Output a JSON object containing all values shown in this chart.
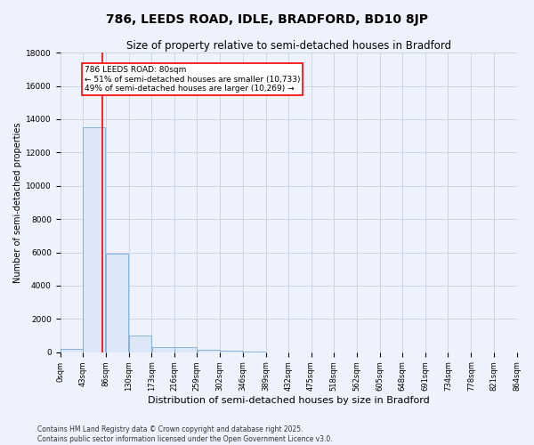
{
  "title1": "786, LEEDS ROAD, IDLE, BRADFORD, BD10 8JP",
  "title2": "Size of property relative to semi-detached houses in Bradford",
  "xlabel": "Distribution of semi-detached houses by size in Bradford",
  "ylabel": "Number of semi-detached properties",
  "bin_edges": [
    0,
    43,
    86,
    130,
    173,
    216,
    259,
    302,
    346,
    389,
    432,
    475,
    518,
    562,
    605,
    648,
    691,
    734,
    778,
    821,
    864
  ],
  "bar_heights": [
    200,
    13500,
    5900,
    1000,
    300,
    280,
    150,
    100,
    20,
    10,
    5,
    5,
    2,
    2,
    1,
    1,
    0,
    0,
    0,
    0
  ],
  "bar_color": "#dce8f8",
  "bar_edge_color": "#7aaad8",
  "red_line_x": 80,
  "annotation_title": "786 LEEDS ROAD: 80sqm",
  "annotation_line1": "← 51% of semi-detached houses are smaller (10,733)",
  "annotation_line2": "49% of semi-detached houses are larger (10,269) →",
  "ylim": [
    0,
    18000
  ],
  "footer1": "Contains HM Land Registry data © Crown copyright and database right 2025.",
  "footer2": "Contains public sector information licensed under the Open Government Licence v3.0.",
  "bg_color": "#eef2fc",
  "grid_color": "#ccd4e8",
  "title1_fontsize": 10,
  "title2_fontsize": 8.5,
  "ylabel_fontsize": 7,
  "xlabel_fontsize": 8,
  "tick_fontsize": 6,
  "annot_fontsize": 6.5,
  "footer_fontsize": 5.5
}
